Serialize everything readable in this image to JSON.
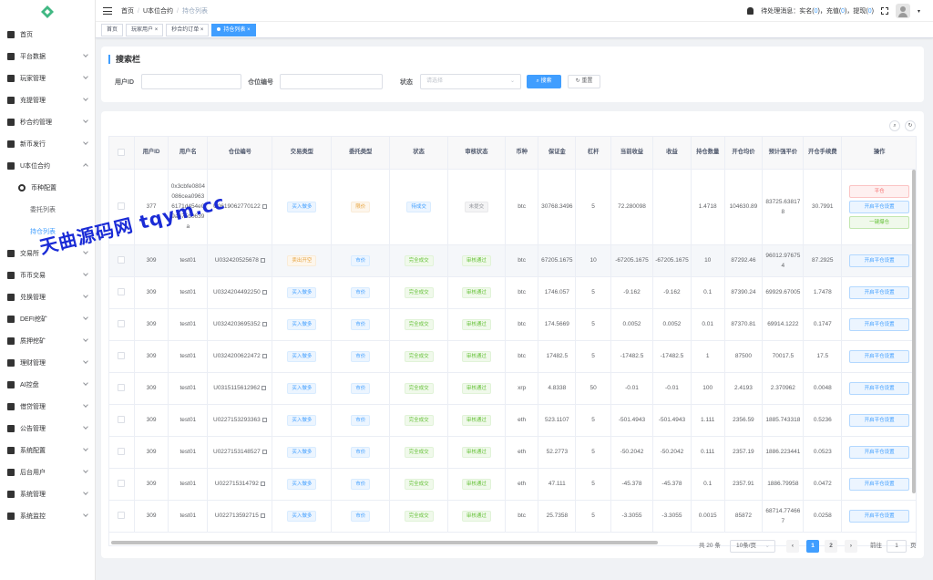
{
  "sidebar": {
    "items": [
      {
        "label": "首页",
        "icon": "dashboard-icon"
      },
      {
        "label": "平台数据",
        "icon": "chart-icon"
      },
      {
        "label": "玩家管理",
        "icon": "user-icon"
      },
      {
        "label": "充提管理",
        "icon": "wallet-icon"
      },
      {
        "label": "秒合约管理",
        "icon": "contract-icon"
      },
      {
        "label": "新币发行",
        "icon": "coin-icon"
      },
      {
        "label": "U本位合约",
        "icon": "contract-icon"
      },
      {
        "label": "币种配置",
        "icon": "gear-icon"
      },
      {
        "label": "委托列表",
        "icon": ""
      },
      {
        "label": "持仓列表",
        "icon": ""
      },
      {
        "label": "交易所",
        "icon": "exchange-icon"
      },
      {
        "label": "币币交易",
        "icon": "swap-icon"
      },
      {
        "label": "兑换管理",
        "icon": "exchange-icon"
      },
      {
        "label": "DEFI挖矿",
        "icon": "mining-icon"
      },
      {
        "label": "质押挖矿",
        "icon": "stake-icon"
      },
      {
        "label": "理财管理",
        "icon": "finance-icon"
      },
      {
        "label": "AI控盘",
        "icon": "ai-icon"
      },
      {
        "label": "借贷管理",
        "icon": "loan-icon"
      },
      {
        "label": "公告管理",
        "icon": "notice-icon"
      },
      {
        "label": "系统配置",
        "icon": "config-icon"
      },
      {
        "label": "后台用户",
        "icon": "admin-icon"
      },
      {
        "label": "系统管理",
        "icon": "gear-icon"
      },
      {
        "label": "系统监控",
        "icon": "monitor-icon"
      }
    ]
  },
  "header": {
    "breadcrumb": [
      "首页",
      "U本位合约",
      "持仓列表"
    ],
    "notice": {
      "prefix": "待处理消息：实名(",
      "n1": "0",
      "mid1": ")，充值(",
      "n2": "0",
      "mid2": ")，提现(",
      "n3": "0",
      "suffix": ")"
    }
  },
  "tags": [
    "首页",
    "玩家用户",
    "秒合约订单",
    "持仓列表"
  ],
  "search": {
    "title": "搜索栏",
    "user_id_label": "用户ID",
    "user_id_value": "",
    "position_no_label": "仓位编号",
    "position_no_value": "",
    "status_label": "状态",
    "status_placeholder": "请选择",
    "search_btn": "搜索",
    "reset_btn": "重置"
  },
  "table": {
    "headers": [
      "用户ID",
      "用户名",
      "仓位编号",
      "交易类型",
      "委托类型",
      "状态",
      "审核状态",
      "币种",
      "保证金",
      "杠杆",
      "当前收益",
      "收益",
      "持仓数量",
      "开仓均价",
      "预计强平价",
      "开仓手续费",
      "操作"
    ],
    "actions": {
      "close": "平仓",
      "settings": "开启平仓设置",
      "one_click": "一键爆仓"
    },
    "rows": [
      {
        "uid": "377",
        "name": "0x3cbfe0804086cea09636171d454e09a675b0639a",
        "pos": "U0619062770122",
        "trade": "买入做多",
        "trade_c": "blue",
        "entrust": "限价",
        "entrust_c": "yellow",
        "status": "待成交",
        "status_c": "blue",
        "audit": "未提交",
        "audit_c": "gray",
        "coin": "btc",
        "margin": "30768.3496",
        "lev": "5",
        "cur": "72.280098",
        "profit": "",
        "qty": "1.4718",
        "open": "104630.89",
        "liq": "83725.638178",
        "fee": "30.7991"
      },
      {
        "uid": "309",
        "name": "test01",
        "pos": "U032420525678",
        "trade": "卖出开空",
        "trade_c": "yellow",
        "entrust": "市价",
        "entrust_c": "blue",
        "status": "完全成交",
        "status_c": "green",
        "audit": "审核通过",
        "audit_c": "green",
        "coin": "btc",
        "margin": "67205.1675",
        "lev": "10",
        "cur": "-67205.1675",
        "profit": "-67205.1675",
        "qty": "10",
        "open": "87292.46",
        "liq": "96012.976754",
        "fee": "87.2925"
      },
      {
        "uid": "309",
        "name": "test01",
        "pos": "U0324204492250",
        "trade": "买入做多",
        "trade_c": "blue",
        "entrust": "市价",
        "entrust_c": "blue",
        "status": "完全成交",
        "status_c": "green",
        "audit": "审核通过",
        "audit_c": "green",
        "coin": "btc",
        "margin": "1746.057",
        "lev": "5",
        "cur": "-9.162",
        "profit": "-9.162",
        "qty": "0.1",
        "open": "87390.24",
        "liq": "69929.67005",
        "fee": "1.7478"
      },
      {
        "uid": "309",
        "name": "test01",
        "pos": "U0324203695352",
        "trade": "买入做多",
        "trade_c": "blue",
        "entrust": "市价",
        "entrust_c": "blue",
        "status": "完全成交",
        "status_c": "green",
        "audit": "审核通过",
        "audit_c": "green",
        "coin": "btc",
        "margin": "174.5669",
        "lev": "5",
        "cur": "0.0052",
        "profit": "0.0052",
        "qty": "0.01",
        "open": "87370.81",
        "liq": "69914.1222",
        "fee": "0.1747"
      },
      {
        "uid": "309",
        "name": "test01",
        "pos": "U0324200622472",
        "trade": "买入做多",
        "trade_c": "blue",
        "entrust": "市价",
        "entrust_c": "blue",
        "status": "完全成交",
        "status_c": "green",
        "audit": "审核通过",
        "audit_c": "green",
        "coin": "btc",
        "margin": "17482.5",
        "lev": "5",
        "cur": "-17482.5",
        "profit": "-17482.5",
        "qty": "1",
        "open": "87500",
        "liq": "70017.5",
        "fee": "17.5"
      },
      {
        "uid": "309",
        "name": "test01",
        "pos": "U0315115612962",
        "trade": "买入做多",
        "trade_c": "blue",
        "entrust": "市价",
        "entrust_c": "blue",
        "status": "完全成交",
        "status_c": "green",
        "audit": "审核通过",
        "audit_c": "green",
        "coin": "xrp",
        "margin": "4.8338",
        "lev": "50",
        "cur": "-0.01",
        "profit": "-0.01",
        "qty": "100",
        "open": "2.4193",
        "liq": "2.370962",
        "fee": "0.0048"
      },
      {
        "uid": "309",
        "name": "test01",
        "pos": "U0227153293363",
        "trade": "买入做多",
        "trade_c": "blue",
        "entrust": "市价",
        "entrust_c": "blue",
        "status": "完全成交",
        "status_c": "green",
        "audit": "审核通过",
        "audit_c": "green",
        "coin": "eth",
        "margin": "523.1107",
        "lev": "5",
        "cur": "-501.4943",
        "profit": "-501.4943",
        "qty": "1.111",
        "open": "2356.59",
        "liq": "1885.743318",
        "fee": "0.5236"
      },
      {
        "uid": "309",
        "name": "test01",
        "pos": "U0227153148527",
        "trade": "买入做多",
        "trade_c": "blue",
        "entrust": "市价",
        "entrust_c": "blue",
        "status": "完全成交",
        "status_c": "green",
        "audit": "审核通过",
        "audit_c": "green",
        "coin": "eth",
        "margin": "52.2773",
        "lev": "5",
        "cur": "-50.2042",
        "profit": "-50.2042",
        "qty": "0.111",
        "open": "2357.19",
        "liq": "1886.223441",
        "fee": "0.0523"
      },
      {
        "uid": "309",
        "name": "test01",
        "pos": "U022715314792",
        "trade": "买入做多",
        "trade_c": "blue",
        "entrust": "市价",
        "entrust_c": "blue",
        "status": "完全成交",
        "status_c": "green",
        "audit": "审核通过",
        "audit_c": "green",
        "coin": "eth",
        "margin": "47.111",
        "lev": "5",
        "cur": "-45.378",
        "profit": "-45.378",
        "qty": "0.1",
        "open": "2357.91",
        "liq": "1886.79958",
        "fee": "0.0472"
      },
      {
        "uid": "309",
        "name": "test01",
        "pos": "U022713592715",
        "trade": "买入做多",
        "trade_c": "blue",
        "entrust": "市价",
        "entrust_c": "blue",
        "status": "完全成交",
        "status_c": "green",
        "audit": "审核通过",
        "audit_c": "green",
        "coin": "btc",
        "margin": "25.7358",
        "lev": "5",
        "cur": "-3.3055",
        "profit": "-3.3055",
        "qty": "0.0015",
        "open": "85872",
        "liq": "68714.774667",
        "fee": "0.0258"
      }
    ]
  },
  "pagination": {
    "total": "共 20 条",
    "page_size": "10条/页",
    "pages": [
      "1",
      "2"
    ],
    "current": "1",
    "goto_label": "前往",
    "goto_value": "1",
    "goto_suffix": "页"
  },
  "watermark": "天曲源码网 tqym.cc",
  "colors": {
    "primary": "#409eff",
    "success": "#67c23a",
    "warning": "#e6a23c",
    "danger": "#f56c6c",
    "info": "#909399"
  }
}
